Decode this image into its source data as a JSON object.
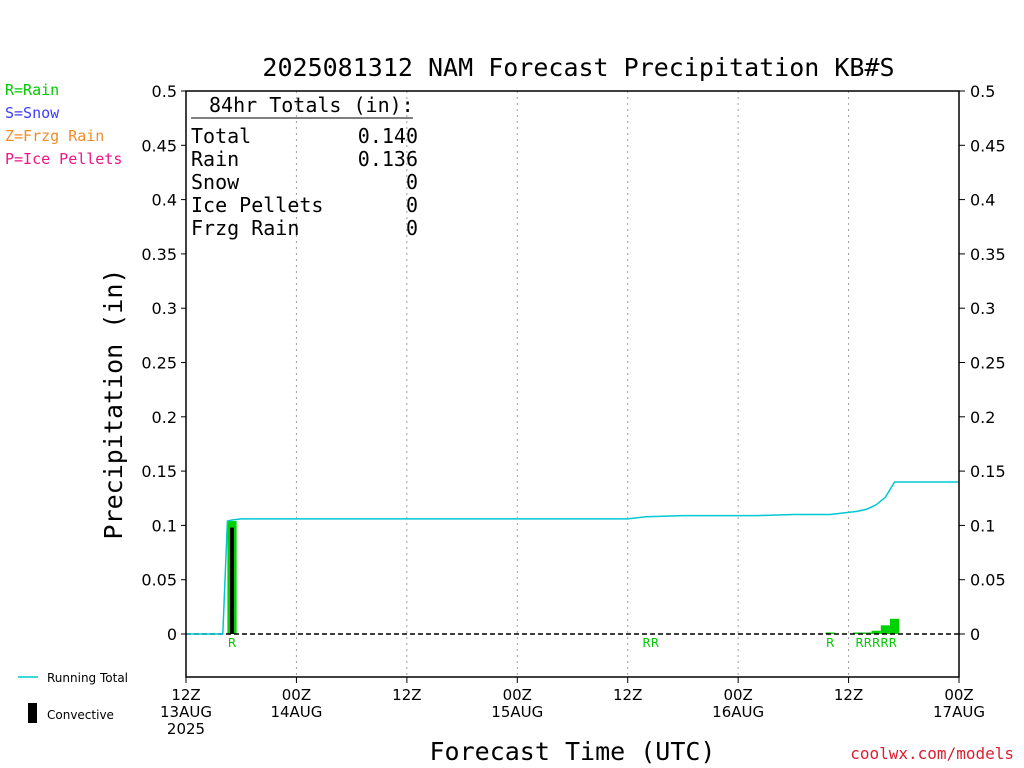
{
  "chart_data": {
    "type": "bar",
    "title": "2025081312 NAM Forecast Precipitation KB#S",
    "xlabel": "Forecast Time (UTC)",
    "ylabel": "Precipitation (in)",
    "ylim": [
      0,
      0.5
    ],
    "y_ticks": [
      "0",
      "0.05",
      "0.1",
      "0.15",
      "0.2",
      "0.25",
      "0.3",
      "0.35",
      "0.4",
      "0.45",
      "0.5"
    ],
    "x_range_hours": [
      0,
      84
    ],
    "x_ticks": [
      {
        "hour": 0,
        "l1": "12Z",
        "l2": "13AUG",
        "l3": "2025"
      },
      {
        "hour": 12,
        "l1": "00Z",
        "l2": "14AUG",
        "l3": ""
      },
      {
        "hour": 24,
        "l1": "12Z",
        "l2": "",
        "l3": ""
      },
      {
        "hour": 36,
        "l1": "00Z",
        "l2": "15AUG",
        "l3": ""
      },
      {
        "hour": 48,
        "l1": "12Z",
        "l2": "",
        "l3": ""
      },
      {
        "hour": 60,
        "l1": "00Z",
        "l2": "16AUG",
        "l3": ""
      },
      {
        "hour": 72,
        "l1": "12Z",
        "l2": "",
        "l3": ""
      },
      {
        "hour": 84,
        "l1": "00Z",
        "l2": "17AUG",
        "l3": ""
      }
    ],
    "bars": [
      {
        "hour": 5,
        "rain": 0.104,
        "convective": 0.098,
        "type": "R"
      },
      {
        "hour": 50,
        "rain": 0.0,
        "convective": 0.0,
        "type": "R"
      },
      {
        "hour": 51,
        "rain": 0.0,
        "convective": 0.0,
        "type": "R"
      },
      {
        "hour": 70,
        "rain": 0.001,
        "convective": 0.0,
        "type": "R"
      },
      {
        "hour": 73,
        "rain": 0.001,
        "convective": 0.0,
        "type": "R"
      },
      {
        "hour": 74,
        "rain": 0.001,
        "convective": 0.0,
        "type": "R"
      },
      {
        "hour": 75,
        "rain": 0.003,
        "convective": 0.0,
        "type": "R"
      },
      {
        "hour": 76,
        "rain": 0.008,
        "convective": 0.0,
        "type": "R"
      },
      {
        "hour": 77,
        "rain": 0.014,
        "convective": 0.0,
        "type": "R"
      }
    ],
    "running_total": {
      "hours": [
        0,
        4,
        4.5,
        5,
        6,
        12,
        24,
        36,
        48,
        50,
        54,
        60,
        62,
        66,
        70,
        72,
        73,
        74,
        75,
        76,
        77,
        84
      ],
      "values": [
        0,
        0,
        0.104,
        0.105,
        0.106,
        0.106,
        0.106,
        0.106,
        0.106,
        0.108,
        0.109,
        0.109,
        0.109,
        0.11,
        0.11,
        0.112,
        0.113,
        0.115,
        0.119,
        0.126,
        0.14,
        0.14
      ]
    },
    "precip_type_labels": [
      {
        "hour": 5,
        "text": "R"
      },
      {
        "hour": 50.5,
        "text": "RR"
      },
      {
        "hour": 70,
        "text": "R"
      },
      {
        "hour": 75,
        "text": "RRRRR"
      }
    ],
    "totals": {
      "header": "84hr Totals (in):",
      "rows": [
        {
          "label": "Total",
          "value": "0.140"
        },
        {
          "label": "Rain",
          "value": "0.136"
        },
        {
          "label": "Snow",
          "value": "0"
        },
        {
          "label": "Ice Pellets",
          "value": "0"
        },
        {
          "label": "Frzg Rain",
          "value": "0"
        }
      ]
    },
    "type_legend": [
      {
        "text": "R=Rain",
        "color": "#00c800"
      },
      {
        "text": "S=Snow",
        "color": "#3c3cff"
      },
      {
        "text": "Z=Frzg Rain",
        "color": "#f08c28"
      },
      {
        "text": "P=Ice Pellets",
        "color": "#f0148c"
      }
    ],
    "series_legend": {
      "running_total": "Running Total",
      "convective": "Convective"
    },
    "colors": {
      "rain": "#00d200",
      "convective": "#000000",
      "running_total": "#00c8d2",
      "grid": "#a0a0a0"
    },
    "grid": true
  },
  "credit": "coolwx.com/models"
}
